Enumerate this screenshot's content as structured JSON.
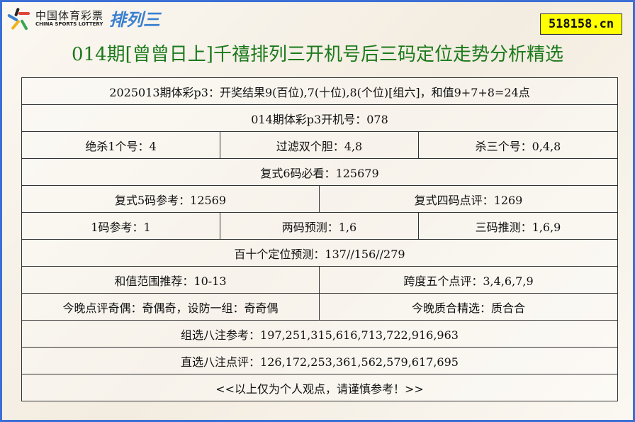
{
  "logo": {
    "cn": "中国体育彩票",
    "en": "CHINA SPORTS LOTTERY",
    "product": "排列三"
  },
  "badge": "518158.cn",
  "title": "014期[曾曾日上]千禧排列三开机号后三码定位走势分析精选",
  "colors": {
    "title": "#1c7a1c",
    "frame": "#3b6fd6",
    "badge_bg": "#ffff00"
  },
  "rows": [
    [
      "2025013期体彩p3：开奖结果9(百位),7(十位),8(个位)[组六]，和值9+7+8=24点"
    ],
    [
      "014期体彩p3开机号：078"
    ],
    [
      "绝杀1个号：4",
      "过滤双个胆：4,8",
      "杀三个号：0,4,8"
    ],
    [
      "复式6码必看：125679"
    ],
    [
      "复式5码参考：12569",
      "复式四码点评：1269"
    ],
    [
      "1码参考：1",
      "两码预测：1,6",
      "三码推测：1,6,9"
    ],
    [
      "百十个定位预测：137//156//279"
    ],
    [
      "和值范围推荐：10-13",
      "跨度五个点评：3,4,6,7,9"
    ],
    [
      "今晚点评奇偶：奇偶奇，设防一组：奇奇偶",
      "今晚质合精选：质合合"
    ],
    [
      "组选八注参考：197,251,315,616,713,722,916,963"
    ],
    [
      "直选八注点评：126,172,253,361,562,579,617,695"
    ],
    [
      "<<以上仅为个人观点，请谨慎参考！>>"
    ]
  ]
}
